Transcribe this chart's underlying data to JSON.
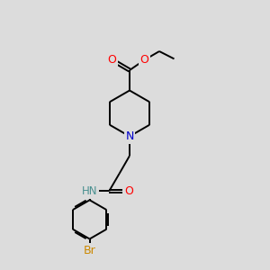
{
  "background_color": "#dcdcdc",
  "bond_color": "#000000",
  "atom_colors": {
    "O": "#ff0000",
    "N_pip": "#0000cd",
    "N_amide": "#4a9090",
    "Br": "#cc8800",
    "C": "#000000"
  },
  "lw": 1.4,
  "xlim": [
    0,
    10
  ],
  "ylim": [
    0,
    10
  ]
}
